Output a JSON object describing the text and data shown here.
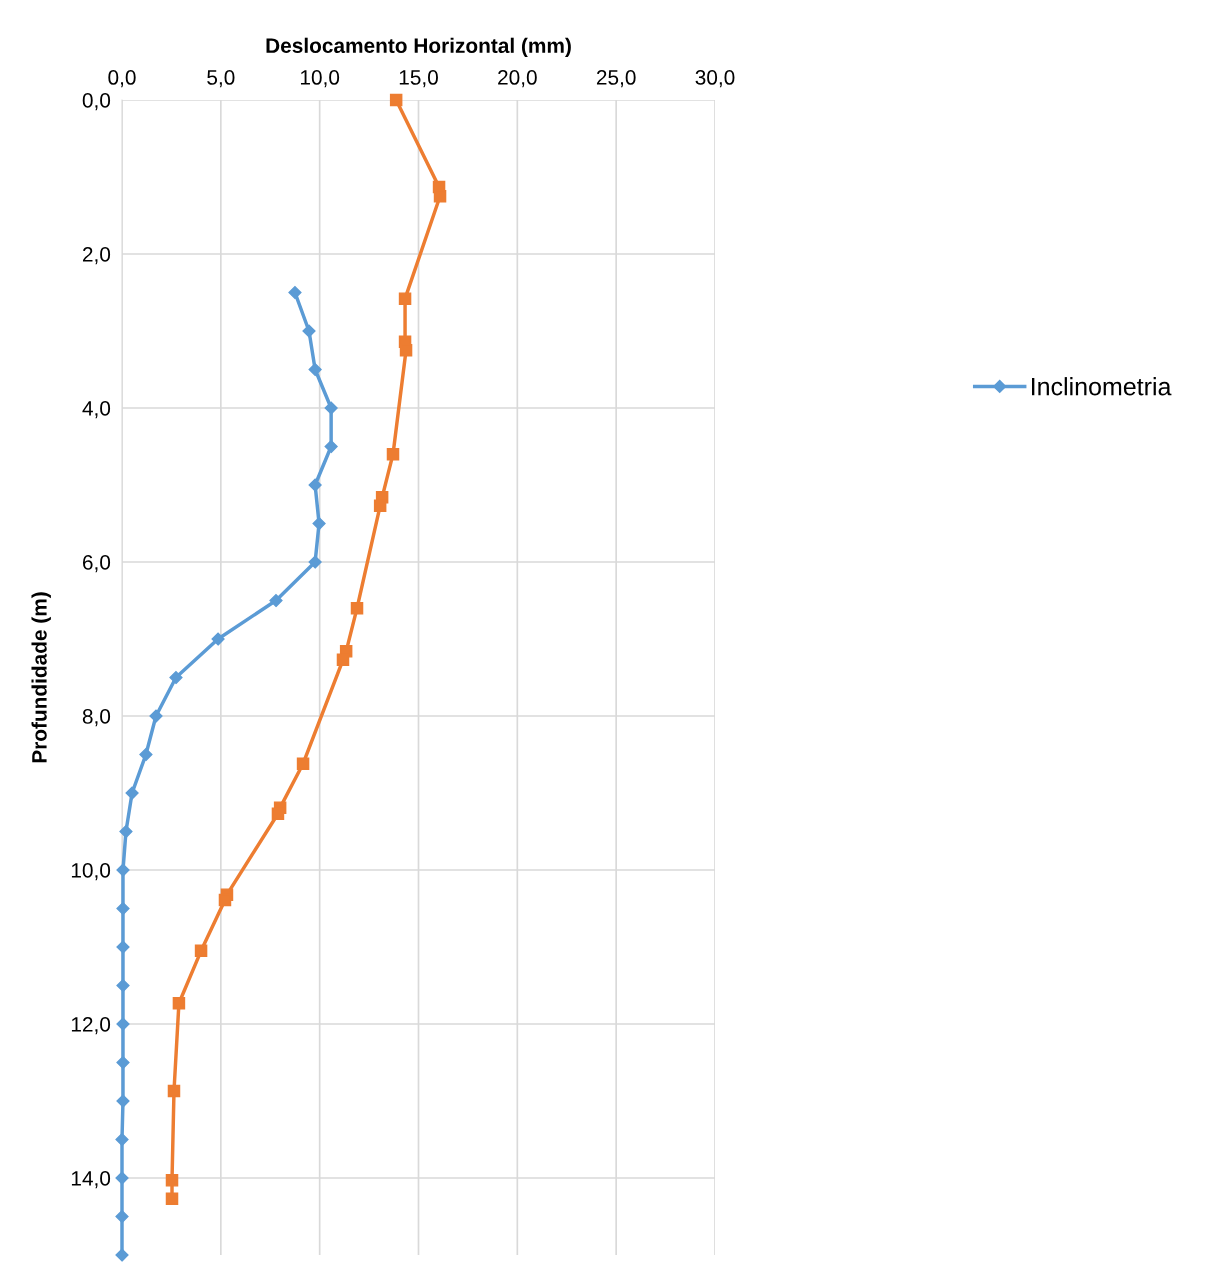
{
  "chart_data": {
    "type": "line",
    "xlabel": "Deslocamento Horizontal (mm)",
    "ylabel": "Profundidade (m)",
    "xlim": [
      0,
      30
    ],
    "ylim": [
      15,
      0
    ],
    "xticks": [
      {
        "value": 0,
        "label": "0,0"
      },
      {
        "value": 5,
        "label": "5,0"
      },
      {
        "value": 10,
        "label": "10,0"
      },
      {
        "value": 15,
        "label": "15,0"
      },
      {
        "value": 20,
        "label": "20,0"
      },
      {
        "value": 25,
        "label": "25,0"
      },
      {
        "value": 30,
        "label": "30,0"
      }
    ],
    "yticks": [
      {
        "value": 0,
        "label": "0,0"
      },
      {
        "value": 2,
        "label": "2,0"
      },
      {
        "value": 4,
        "label": "4,0"
      },
      {
        "value": 6,
        "label": "6,0"
      },
      {
        "value": 8,
        "label": "8,0"
      },
      {
        "value": 10,
        "label": "10,0"
      },
      {
        "value": 12,
        "label": "12,0"
      },
      {
        "value": 14,
        "label": "14,0"
      }
    ],
    "grid": true,
    "legend": "right",
    "line_style": "solid",
    "series": [
      {
        "name": "Inclinometria",
        "color": "#5b9bd5",
        "marker": "diamond",
        "x": [
          8.75,
          9.46,
          9.77,
          10.58,
          10.58,
          9.77,
          9.97,
          9.77,
          7.79,
          4.86,
          2.73,
          1.72,
          1.21,
          0.51,
          0.2,
          0.05,
          0.05,
          0.05,
          0.05,
          0.05,
          0.05,
          0.05,
          0.0,
          0.0,
          0.0,
          0.0
        ],
        "values": [
          2.5,
          3.0,
          3.5,
          4.0,
          4.5,
          5.0,
          5.5,
          6.0,
          6.5,
          7.0,
          7.5,
          8.0,
          8.5,
          9.0,
          9.5,
          10.0,
          10.5,
          11.0,
          11.5,
          12.0,
          12.5,
          13.0,
          13.5,
          14.0,
          14.5,
          15.0
        ]
      },
      {
        "color": "#ed7d31",
        "marker": "square",
        "x": [
          13.87,
          16.04,
          16.09,
          14.32,
          14.32,
          14.37,
          13.71,
          13.16,
          13.06,
          11.89,
          11.34,
          11.18,
          9.16,
          8.0,
          7.89,
          5.31,
          5.21,
          4.0,
          2.88,
          2.63,
          2.53,
          2.53
        ],
        "values": [
          0,
          1.13,
          1.25,
          2.58,
          3.14,
          3.25,
          4.6,
          5.16,
          5.27,
          6.6,
          7.16,
          7.27,
          8.62,
          9.19,
          9.27,
          10.32,
          10.39,
          11.05,
          11.73,
          12.87,
          14.03,
          14.27
        ]
      }
    ]
  }
}
